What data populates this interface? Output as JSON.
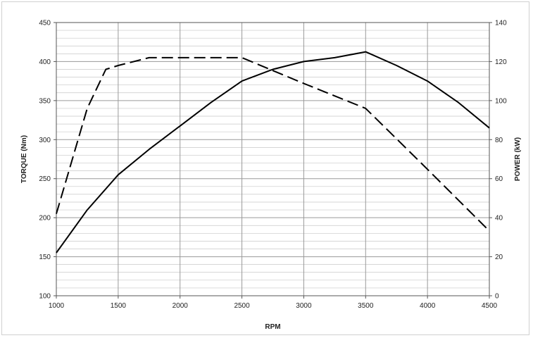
{
  "chart_data": {
    "type": "line",
    "title": "",
    "xlabel": "RPM",
    "ylabel": "TORQUE (Nm)",
    "y2label": "POWER (kW)",
    "xlim": [
      1000,
      4500
    ],
    "ylim": [
      100,
      450
    ],
    "y2lim": [
      0,
      140
    ],
    "x_ticks": [
      1000,
      1500,
      2000,
      2500,
      3000,
      3500,
      4000,
      4500
    ],
    "y_ticks": [
      100,
      150,
      200,
      250,
      300,
      350,
      400,
      450
    ],
    "y2_ticks": [
      0,
      20,
      40,
      60,
      80,
      100,
      120,
      140
    ],
    "grid": true,
    "series": [
      {
        "axis": "right",
        "style": "solid",
        "color": "#000000",
        "points": [
          [
            1000,
            22
          ],
          [
            1250,
            44
          ],
          [
            1500,
            62
          ],
          [
            1750,
            75
          ],
          [
            2000,
            87
          ],
          [
            2250,
            99
          ],
          [
            2500,
            110
          ],
          [
            2750,
            116
          ],
          [
            3000,
            120
          ],
          [
            3250,
            122
          ],
          [
            3500,
            125
          ],
          [
            3750,
            118
          ],
          [
            4000,
            110
          ],
          [
            4250,
            99
          ],
          [
            4500,
            86
          ]
        ]
      },
      {
        "axis": "left",
        "style": "dashed",
        "color": "#000000",
        "points": [
          [
            1000,
            205
          ],
          [
            1250,
            340
          ],
          [
            1400,
            390
          ],
          [
            1500,
            395
          ],
          [
            1750,
            405
          ],
          [
            2000,
            405
          ],
          [
            2250,
            405
          ],
          [
            2500,
            405
          ],
          [
            3000,
            372
          ],
          [
            3500,
            340
          ],
          [
            4000,
            262
          ],
          [
            4500,
            183
          ]
        ]
      }
    ]
  }
}
